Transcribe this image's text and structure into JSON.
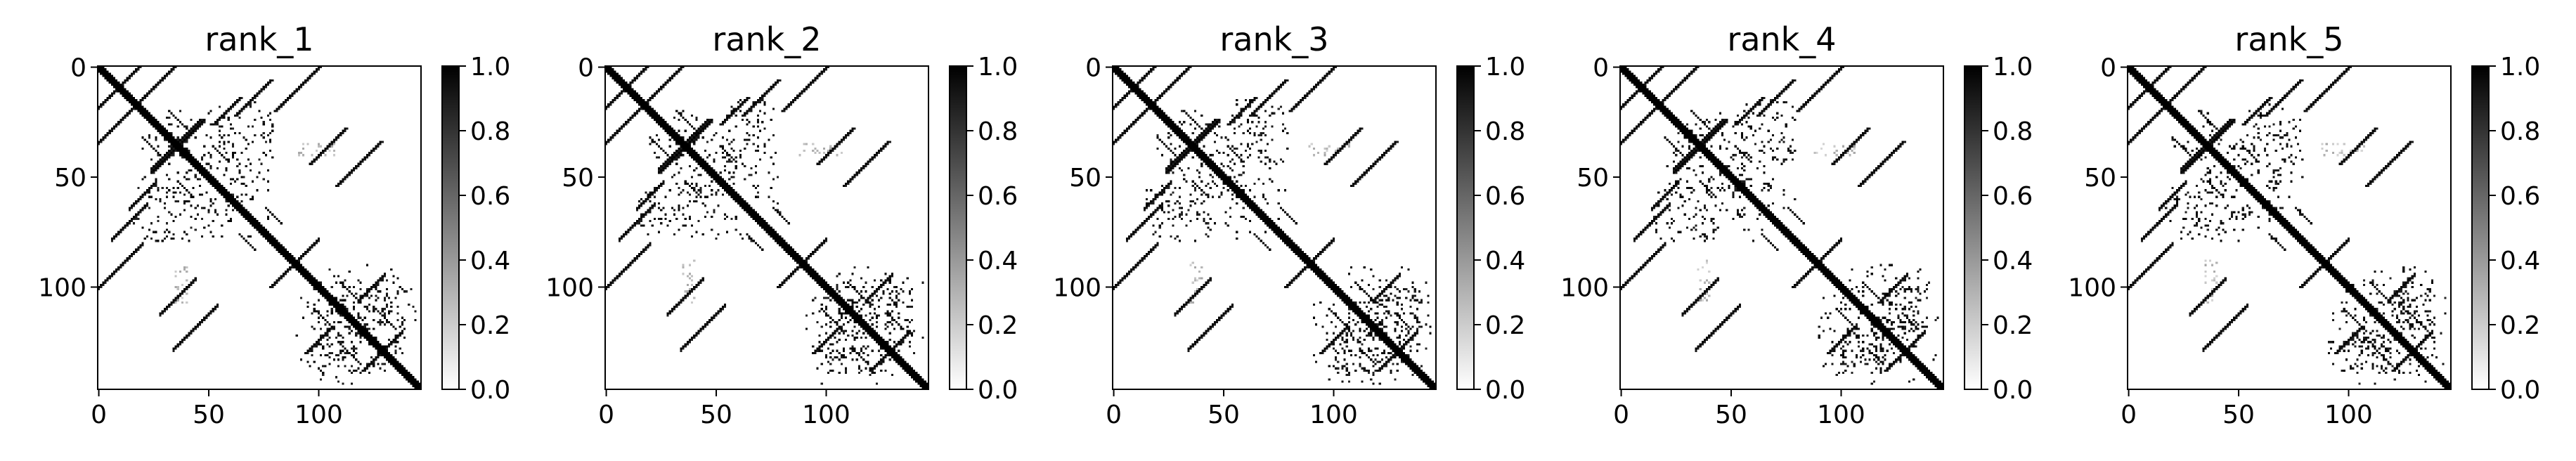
{
  "chart_data": [
    {
      "type": "heatmap",
      "title": "rank_1",
      "size": 147,
      "xticks": [
        0,
        50,
        100
      ],
      "yticks": [
        0,
        50,
        100
      ],
      "colorbar": {
        "range": [
          0.0,
          1.0
        ],
        "ticks": [
          "0.0",
          "0.2",
          "0.4",
          "0.6",
          "0.8",
          "1.0"
        ],
        "colormap": "gray_r"
      }
    },
    {
      "type": "heatmap",
      "title": "rank_2",
      "size": 147,
      "xticks": [
        0,
        50,
        100
      ],
      "yticks": [
        0,
        50,
        100
      ],
      "colorbar": {
        "range": [
          0.0,
          1.0
        ],
        "ticks": [
          "0.0",
          "0.2",
          "0.4",
          "0.6",
          "0.8",
          "1.0"
        ],
        "colormap": "gray_r"
      }
    },
    {
      "type": "heatmap",
      "title": "rank_3",
      "size": 147,
      "xticks": [
        0,
        50,
        100
      ],
      "yticks": [
        0,
        50,
        100
      ],
      "colorbar": {
        "range": [
          0.0,
          1.0
        ],
        "ticks": [
          "0.0",
          "0.2",
          "0.4",
          "0.6",
          "0.8",
          "1.0"
        ],
        "colormap": "gray_r"
      }
    },
    {
      "type": "heatmap",
      "title": "rank_4",
      "size": 147,
      "xticks": [
        0,
        50,
        100
      ],
      "yticks": [
        0,
        50,
        100
      ],
      "colorbar": {
        "range": [
          0.0,
          1.0
        ],
        "ticks": [
          "0.0",
          "0.2",
          "0.4",
          "0.6",
          "0.8",
          "1.0"
        ],
        "colormap": "gray_r"
      }
    },
    {
      "type": "heatmap",
      "title": "rank_5",
      "size": 147,
      "xticks": [
        0,
        50,
        100
      ],
      "yticks": [
        0,
        50,
        100
      ],
      "colorbar": {
        "range": [
          0.0,
          1.0
        ],
        "ticks": [
          "0.0",
          "0.2",
          "0.4",
          "0.6",
          "0.8",
          "1.0"
        ],
        "colormap": "gray_r"
      }
    }
  ],
  "colors": {
    "high": "#000000",
    "low": "#ffffff"
  }
}
